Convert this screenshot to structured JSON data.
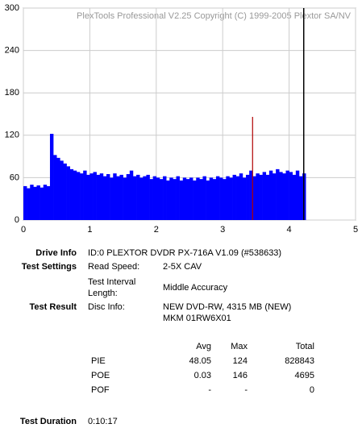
{
  "chart_data": {
    "type": "bar",
    "title": "PlexTools Professional V2.25 Copyright (C) 1999-2005 Plextor SA/NV",
    "xlim": [
      0,
      5
    ],
    "xticks": [
      0,
      1,
      2,
      3,
      4,
      5
    ],
    "ylim": [
      0,
      300
    ],
    "yticks": [
      0,
      60,
      120,
      180,
      240,
      300
    ],
    "grid": true,
    "bar_width": 0.05,
    "series": [
      {
        "name": "PIE",
        "color": "#0000ff",
        "x": [
          0,
          0.05,
          0.1,
          0.15,
          0.2,
          0.25,
          0.3,
          0.35,
          0.4,
          0.45,
          0.5,
          0.55,
          0.6,
          0.65,
          0.7,
          0.75,
          0.8,
          0.85,
          0.9,
          0.95,
          1.0,
          1.05,
          1.1,
          1.15,
          1.2,
          1.25,
          1.3,
          1.35,
          1.4,
          1.45,
          1.5,
          1.55,
          1.6,
          1.65,
          1.7,
          1.75,
          1.8,
          1.85,
          1.9,
          1.95,
          2.0,
          2.05,
          2.1,
          2.15,
          2.2,
          2.25,
          2.3,
          2.35,
          2.4,
          2.45,
          2.5,
          2.55,
          2.6,
          2.65,
          2.7,
          2.75,
          2.8,
          2.85,
          2.9,
          2.95,
          3.0,
          3.05,
          3.1,
          3.15,
          3.2,
          3.25,
          3.3,
          3.35,
          3.4,
          3.45,
          3.5,
          3.55,
          3.6,
          3.65,
          3.7,
          3.75,
          3.8,
          3.85,
          3.9,
          3.95,
          4.0,
          4.05,
          4.1,
          4.15,
          4.2
        ],
        "values": [
          48,
          45,
          50,
          47,
          49,
          46,
          50,
          48,
          122,
          92,
          88,
          84,
          80,
          76,
          72,
          70,
          68,
          66,
          70,
          64,
          66,
          68,
          64,
          66,
          62,
          65,
          60,
          66,
          62,
          64,
          60,
          65,
          70,
          62,
          64,
          60,
          62,
          64,
          58,
          62,
          60,
          58,
          62,
          56,
          60,
          58,
          62,
          56,
          60,
          58,
          60,
          56,
          60,
          58,
          62,
          56,
          60,
          58,
          62,
          60,
          58,
          62,
          60,
          64,
          62,
          66,
          60,
          64,
          70,
          62,
          66,
          64,
          68,
          64,
          70,
          66,
          72,
          68,
          66,
          70,
          68,
          64,
          70,
          62,
          66
        ]
      },
      {
        "name": "POE",
        "color": "#b00000",
        "x": [
          3.45
        ],
        "values": [
          146
        ]
      }
    ],
    "end_x": 4.22,
    "end_color": "#000000"
  },
  "info": {
    "drive_info": {
      "label": "Drive Info",
      "value": "ID:0 PLEXTOR DVDR PX-716A V1.09 (#538633)"
    },
    "test_settings": {
      "label": "Test Settings",
      "read_speed": {
        "label": "Read Speed:",
        "value": "2-5X CAV"
      },
      "interval": {
        "label": "Test Interval Length:",
        "value": "Middle Accuracy"
      }
    },
    "test_result": {
      "label": "Test Result",
      "disc_label": "Disc Info:",
      "disc_lines": [
        "NEW DVD-RW, 4315 MB (NEW)",
        "MKM 01RW6X01"
      ]
    },
    "stats": {
      "headers": [
        "Avg",
        "Max",
        "Total"
      ],
      "rows": [
        [
          "PIE",
          48.05,
          124,
          828843
        ],
        [
          "POE",
          0.03,
          146,
          4695
        ],
        [
          "POF",
          "-",
          "-",
          0
        ]
      ]
    },
    "duration": {
      "label": "Test Duration",
      "value": "0:10:17"
    }
  }
}
